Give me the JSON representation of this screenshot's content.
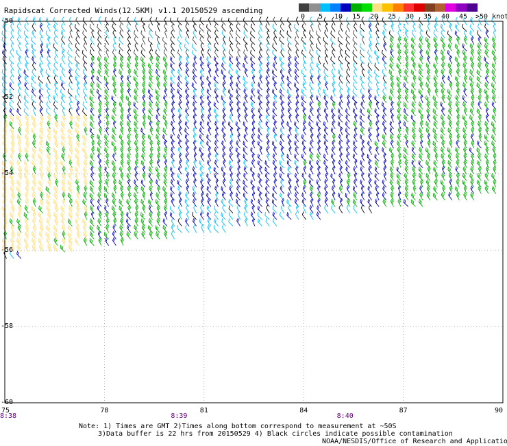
{
  "title": "Rapidscat Corrected Winds(12.5KM) v1.1 20150529 ascending",
  "colorbar": {
    "ticks": [
      "0",
      "5",
      "10",
      "15",
      "20",
      "25",
      "30",
      "35",
      "40",
      "45",
      ">50 knots"
    ],
    "colors": [
      "#404040",
      "#909090",
      "#00c0ff",
      "#0080ff",
      "#0000c0",
      "#00b000",
      "#00e000",
      "#ffe080",
      "#ffc000",
      "#ff8000",
      "#ff3030",
      "#e00000",
      "#804020",
      "#b06030",
      "#e000e0",
      "#9000c0",
      "#500090"
    ]
  },
  "chart_data": {
    "type": "wind-barb map",
    "x_ticks": [
      "75",
      "78",
      "81",
      "84",
      "87",
      "90"
    ],
    "y_ticks": [
      "-50",
      "-52",
      "-54",
      "-56",
      "-58",
      "-60"
    ],
    "xlim": [
      75,
      90
    ],
    "ylim": [
      -60,
      -50
    ],
    "time_labels": [
      {
        "text": "8:38",
        "lon": 75
      },
      {
        "text": "8:39",
        "lon": 80
      },
      {
        "text": "8:40",
        "lon": 85
      }
    ],
    "speed_regions": [
      {
        "lon_min": 75,
        "lon_max": 77.5,
        "lat_min": -56.2,
        "lat_max": -52.5,
        "speed_kt": 22
      },
      {
        "lon_min": 77.5,
        "lon_max": 80,
        "lat_min": -56.2,
        "lat_max": -51,
        "speed_kt": 17
      },
      {
        "lon_min": 80,
        "lon_max": 84,
        "lat_min": -55,
        "lat_max": -51,
        "speed_kt": 12
      },
      {
        "lon_min": 84,
        "lon_max": 86.5,
        "lat_min": -55,
        "lat_max": -52,
        "speed_kt": 13
      },
      {
        "lon_min": 86.5,
        "lon_max": 90,
        "lat_min": -55,
        "lat_max": -50.5,
        "speed_kt": 17
      },
      {
        "lon_min": 77,
        "lon_max": 86,
        "lat_min": -51.2,
        "lat_max": -50,
        "speed_kt": 4
      }
    ]
  },
  "notes": {
    "line1": "Note: 1) Times are GMT 2)Times along bottom correspond to measurement at ~50S",
    "line2": "3)Data buffer is 22 hrs from 20150529 4) Black circles indicate possible contamination",
    "line3": "NOAA/NESDIS/Office of Research and Applications"
  }
}
